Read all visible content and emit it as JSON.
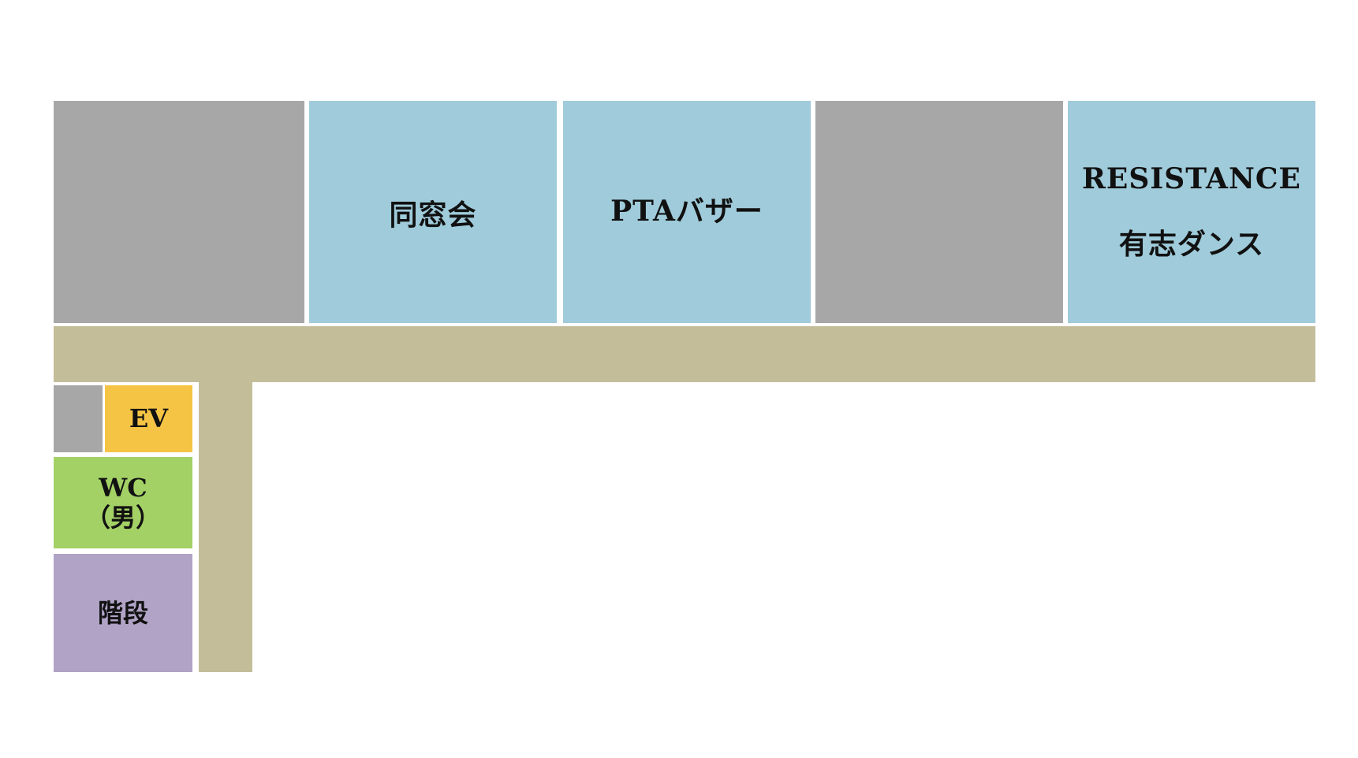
{
  "floor_map": {
    "rooms_top": [
      {
        "label": ""
      },
      {
        "label": "同窓会"
      },
      {
        "label": "PTAバザー"
      },
      {
        "label": ""
      },
      {
        "label_line1": "RESISTANCE",
        "label_line2": "有志ダンス"
      }
    ],
    "ev": {
      "label": "EV"
    },
    "wc": {
      "label_line1": "WC",
      "label_line2": "（男）"
    },
    "stairs": {
      "label": "階段"
    }
  },
  "colors": {
    "unused_room": "#a7a7a7",
    "event_room": "#9fcbda",
    "corridor": "#c4bd9a",
    "elevator": "#f6c445",
    "restroom": "#a3d165",
    "stairs": "#b0a3c6"
  }
}
